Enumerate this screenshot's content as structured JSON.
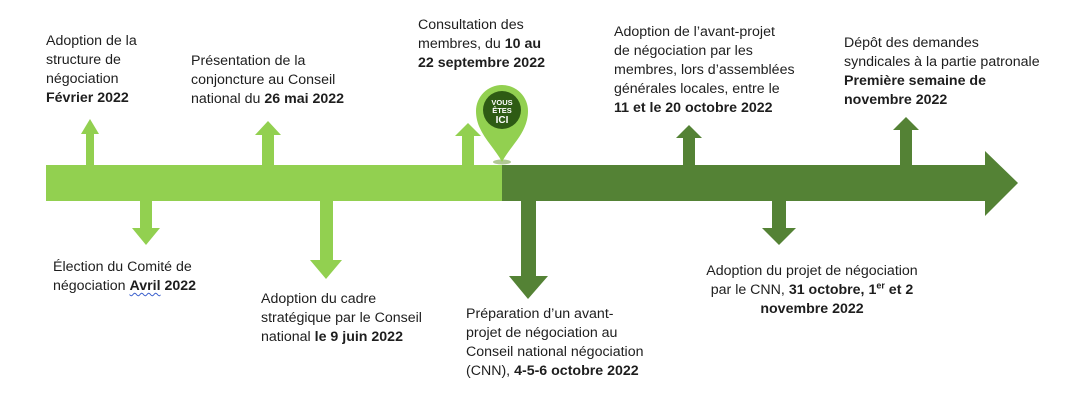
{
  "colors": {
    "done": "#92d050",
    "future": "#548235",
    "text": "#1e1e1e",
    "pin_inner": "#2e5b14"
  },
  "marker": {
    "line1": "VOUS",
    "line2": "ÊTES",
    "line3": "ICI"
  },
  "events": {
    "adoption_structure": {
      "l1": "Adoption de la",
      "l2": "structure de",
      "l3": "négociation",
      "date": "Février 2022"
    },
    "presentation_conjoncture": {
      "l1": "Présentation de la",
      "l2": "conjoncture au Conseil",
      "l3_pre": "national du ",
      "date": "26 mai 2022"
    },
    "consultation_membres": {
      "l1": "Consultation des",
      "l2_pre": "membres, du ",
      "l2_bold": "10 au",
      "date": "22 septembre 2022"
    },
    "adoption_avant_projet": {
      "l1": "Adoption de l’avant-projet",
      "l2": "de négociation par les",
      "l3": "membres, lors d’assemblées",
      "l4": "générales locales, entre le",
      "date": "11 et le 20 octobre 2022"
    },
    "depot_demandes": {
      "l1": "Dépôt des demandes",
      "l2": "syndicales à la partie patronale",
      "date1": "Première semaine de",
      "date2": "novembre 2022"
    },
    "election_comite": {
      "l1": "Élection du Comité de",
      "l2_pre": "négociation ",
      "l2_bold_a": "Avril",
      "l2_bold_b": " 2022"
    },
    "adoption_cadre": {
      "l1": "Adoption du cadre",
      "l2": "stratégique par le Conseil",
      "l3_pre": "national ",
      "date": "le 9 juin 2022"
    },
    "preparation_avant_projet": {
      "l1": "Préparation d’un avant-",
      "l2": "projet de négociation au",
      "l3": "Conseil national négociation",
      "l4_pre": "(CNN), ",
      "date": "4-5-6 octobre 2022"
    },
    "adoption_projet": {
      "l1": "Adoption du projet de négociation",
      "l2_pre": "par le CNN, ",
      "l2_bold": "31 octobre, 1",
      "l2_sup": "er",
      "l2_and": " et 2",
      "date": "novembre 2022"
    }
  }
}
